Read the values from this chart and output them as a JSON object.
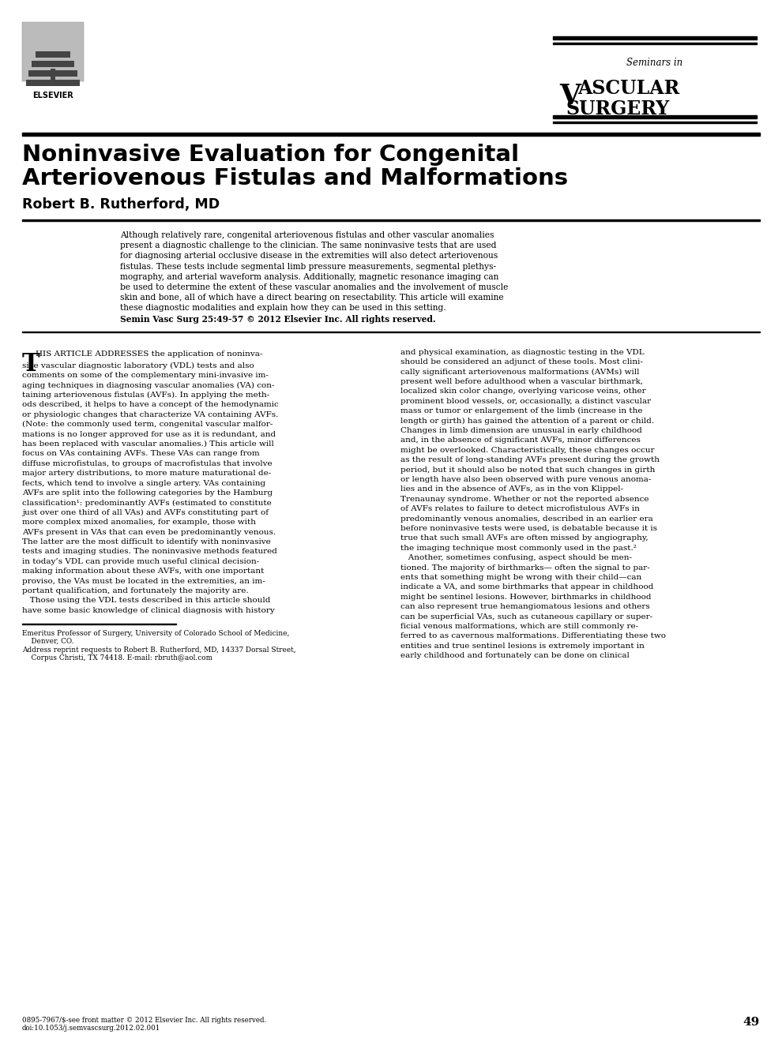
{
  "title_line1": "Noninvasive Evaluation for Congenital",
  "title_line2": "Arteriovenous Fistulas and Malformations",
  "author": "Robert B. Rutherford, MD",
  "journal_seminars": "Seminars in",
  "journal_vascular": "VASCULAR",
  "journal_surgery": "SURGERY",
  "elsevier_text": "ELSEVIER",
  "abstract_lines": [
    "Although relatively rare, congenital arteriovenous fistulas and other vascular anomalies",
    "present a diagnostic challenge to the clinician. The same noninvasive tests that are used",
    "for diagnosing arterial occlusive disease in the extremities will also detect arteriovenous",
    "fistulas. These tests include segmental limb pressure measurements, segmental plethys-",
    "mography, and arterial waveform analysis. Additionally, magnetic resonance imaging can",
    "be used to determine the extent of these vascular anomalies and the involvement of muscle",
    "skin and bone, all of which have a direct bearing on resectability. This article will examine",
    "these diagnostic modalities and explain how they can be used in this setting.",
    "Semin Vasc Surg 25:49-57 © 2012 Elsevier Inc. All rights reserved."
  ],
  "col1_lines": [
    "HIS ARTICLE ADDRESSES the application of noninva-",
    "sive vascular diagnostic laboratory (VDL) tests and also",
    "comments on some of the complementary mini-invasive im-",
    "aging techniques in diagnosing vascular anomalies (VA) con-",
    "taining arteriovenous fistulas (AVFs). In applying the meth-",
    "ods described, it helps to have a concept of the hemodynamic",
    "or physiologic changes that characterize VA containing AVFs.",
    "(Note: the commonly used term, congenital vascular malfor-",
    "mations is no longer approved for use as it is redundant, and",
    "has been replaced with vascular anomalies.) This article will",
    "focus on VAs containing AVFs. These VAs can range from",
    "diffuse microfistulas, to groups of macrofistulas that involve",
    "major artery distributions, to more mature maturational de-",
    "fects, which tend to involve a single artery. VAs containing",
    "AVFs are split into the following categories by the Hamburg",
    "classification¹: predominantly AVFs (estimated to constitute",
    "just over one third of all VAs) and AVFs constituting part of",
    "more complex mixed anomalies, for example, those with",
    "AVFs present in VAs that can even be predominantly venous.",
    "The latter are the most difficult to identify with noninvasive",
    "tests and imaging studies. The noninvasive methods featured",
    "in today’s VDL can provide much useful clinical decision-",
    "making information about these AVFs, with one important",
    "proviso, the VAs must be located in the extremities, an im-",
    "portant qualification, and fortunately the majority are.",
    "   Those using the VDL tests described in this article should",
    "have some basic knowledge of clinical diagnosis with history"
  ],
  "col2_lines": [
    "and physical examination, as diagnostic testing in the VDL",
    "should be considered an adjunct of these tools. Most clini-",
    "cally significant arteriovenous malformations (AVMs) will",
    "present well before adulthood when a vascular birthmark,",
    "localized skin color change, overlying varicose veins, other",
    "prominent blood vessels, or, occasionally, a distinct vascular",
    "mass or tumor or enlargement of the limb (increase in the",
    "length or girth) has gained the attention of a parent or child.",
    "Changes in limb dimension are unusual in early childhood",
    "and, in the absence of significant AVFs, minor differences",
    "might be overlooked. Characteristically, these changes occur",
    "as the result of long-standing AVFs present during the growth",
    "period, but it should also be noted that such changes in girth",
    "or length have also been observed with pure venous anoma-",
    "lies and in the absence of AVFs, as in the von Klippel-",
    "Trenaunay syndrome. Whether or not the reported absence",
    "of AVFs relates to failure to detect microfistulous AVFs in",
    "predominantly venous anomalies, described in an earlier era",
    "before noninvasive tests were used, is debatable because it is",
    "true that such small AVFs are often missed by angiography,",
    "the imaging technique most commonly used in the past.²",
    "   Another, sometimes confusing, aspect should be men-",
    "tioned. The majority of birthmarks— often the signal to par-",
    "ents that something might be wrong with their child—can",
    "indicate a VA, and some birthmarks that appear in childhood",
    "might be sentinel lesions. However, birthmarks in childhood",
    "can also represent true hemangiomatous lesions and others",
    "can be superficial VAs, such as cutaneous capillary or super-",
    "ficial venous malformations, which are still commonly re-",
    "ferred to as cavernous malformations. Differentiating these two",
    "entities and true sentinel lesions is extremely important in",
    "early childhood and fortunately can be done on clinical"
  ],
  "footnote_lines": [
    "Emeritus Professor of Surgery, University of Colorado School of Medicine,",
    "    Denver, CO.",
    "Address reprint requests to Robert B. Rutherford, MD, 14337 Dorsal Street,",
    "    Corpus Christi, TX 74418. E-mail: rbruth@aol.com"
  ],
  "footer_left_line1": "0895-7967/$-see front matter © 2012 Elsevier Inc. All rights reserved.",
  "footer_left_line2": "doi:10.1053/j.semvascsurg.2012.02.001",
  "footer_page": "49",
  "bg": "#ffffff"
}
